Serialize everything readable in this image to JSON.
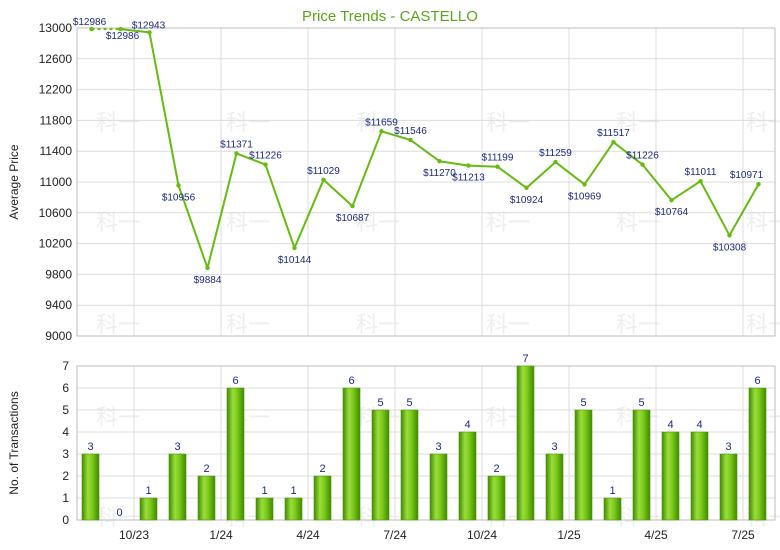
{
  "chart_data": [
    {
      "type": "line",
      "title": "Price Trends - CASTELLO",
      "ylabel": "Average Price",
      "ylim": [
        9000,
        13000
      ],
      "yticks": [
        9000,
        9400,
        9800,
        10200,
        10600,
        11000,
        11400,
        11800,
        12200,
        12600,
        13000
      ],
      "color": "#66bb11",
      "points": [
        {
          "label": "$12986",
          "value": 12986
        },
        {
          "label": "$12986",
          "value": 12986
        },
        {
          "label": "$12943",
          "value": 12943
        },
        {
          "label": "$10956",
          "value": 10956
        },
        {
          "label": "$9884",
          "value": 9884
        },
        {
          "label": "$11371",
          "value": 11371
        },
        {
          "label": "$11226",
          "value": 11226
        },
        {
          "label": "$10144",
          "value": 10144
        },
        {
          "label": "$11029",
          "value": 11029
        },
        {
          "label": "$10687",
          "value": 10687
        },
        {
          "label": "$11659",
          "value": 11659
        },
        {
          "label": "$11546",
          "value": 11546
        },
        {
          "label": "$11270",
          "value": 11270
        },
        {
          "label": "$11213",
          "value": 11213
        },
        {
          "label": "$11199",
          "value": 11199
        },
        {
          "label": "$10924",
          "value": 10924
        },
        {
          "label": "$11259",
          "value": 11259
        },
        {
          "label": "$10969",
          "value": 10969
        },
        {
          "label": "$11517",
          "value": 11517
        },
        {
          "label": "$11226",
          "value": 11226
        },
        {
          "label": "$10764",
          "value": 10764
        },
        {
          "label": "$11011",
          "value": 11011
        },
        {
          "label": "$10308",
          "value": 10308
        },
        {
          "label": "$10971",
          "value": 10971
        }
      ]
    },
    {
      "type": "bar",
      "ylabel": "No. of Transactions",
      "ylim": [
        0,
        7
      ],
      "yticks": [
        0,
        1,
        2,
        3,
        4,
        5,
        6,
        7
      ],
      "color": "#66bb11",
      "values": [
        3,
        0,
        1,
        3,
        2,
        6,
        1,
        1,
        2,
        6,
        5,
        5,
        3,
        4,
        2,
        7,
        3,
        5,
        1,
        5,
        4,
        4,
        3,
        6
      ],
      "xticks": [
        {
          "index": 2,
          "label": "10/23"
        },
        {
          "index": 5,
          "label": "1/24"
        },
        {
          "index": 8,
          "label": "4/24"
        },
        {
          "index": 11,
          "label": "7/24"
        },
        {
          "index": 14,
          "label": "10/24"
        },
        {
          "index": 17,
          "label": "1/25"
        },
        {
          "index": 20,
          "label": "4/25"
        },
        {
          "index": 23,
          "label": "7/25"
        }
      ]
    }
  ],
  "watermark": "科一"
}
